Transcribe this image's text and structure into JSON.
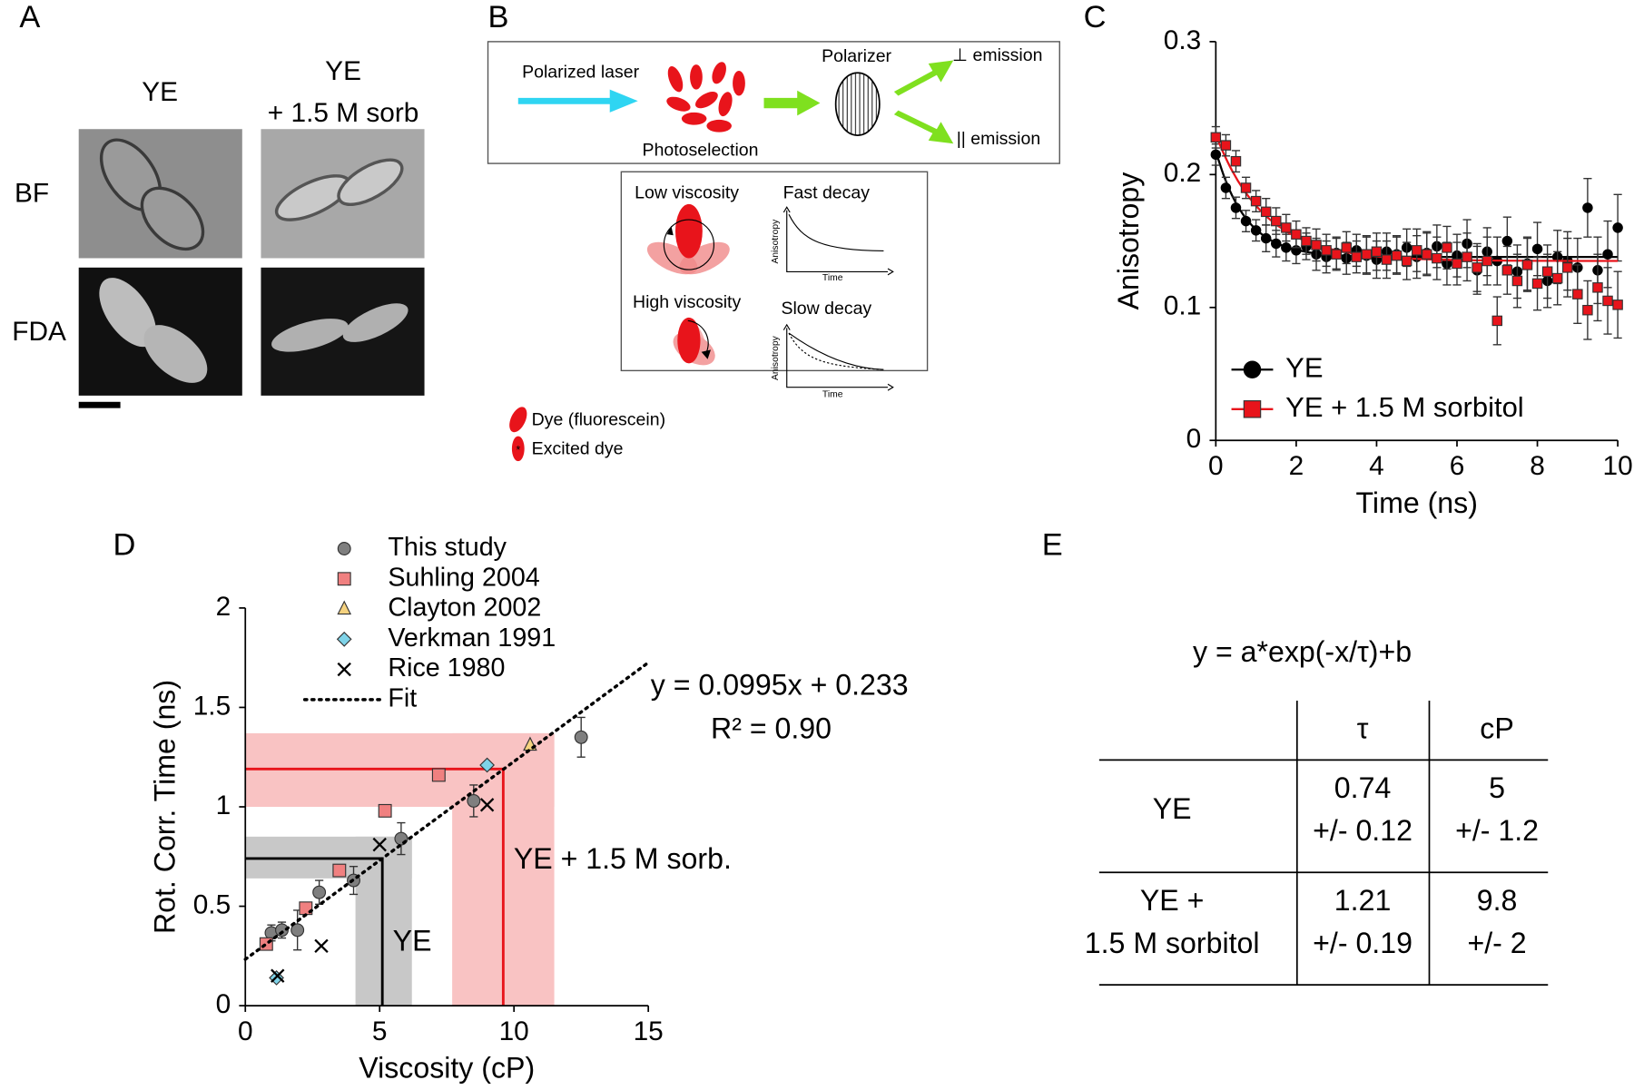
{
  "panel_labels": [
    "A",
    "B",
    "C",
    "D",
    "E"
  ],
  "panel_a": {
    "column_1": [
      "YE"
    ],
    "column_2": [
      "YE",
      "+ 1.5 M sorb"
    ],
    "rows": [
      "BF",
      "FDA"
    ]
  },
  "panel_b": {
    "laser": "Polarized laser",
    "photoselection": "Photoselection",
    "polarizer": "Polarizer",
    "perpendicular": "⊥ emission",
    "parallel": "|| emission",
    "low": "Low viscosity",
    "fast": "Fast decay",
    "high": "High viscosity",
    "slow": "Slow decay",
    "plot_y": "Anisotropy",
    "plot_x": "Time",
    "legend": [
      "Dye (fluorescein)",
      "Excited dye"
    ]
  },
  "chart_data": [
    {
      "type": "scatter",
      "xlabel": "Time (ns)",
      "ylabel": "Anisotropy",
      "xlim": [
        0,
        10
      ],
      "ylim": [
        0,
        0.3
      ],
      "xticks": [
        0,
        2,
        4,
        6,
        8,
        10
      ],
      "yticks": [
        0,
        0.1,
        0.2,
        0.3
      ],
      "legend": "lower left",
      "x": [
        0,
        0.25,
        0.5,
        0.75,
        1,
        1.25,
        1.5,
        1.75,
        2,
        2.25,
        2.5,
        2.75,
        3,
        3.25,
        3.5,
        3.75,
        4,
        4.25,
        4.5,
        4.75,
        5,
        5.25,
        5.5,
        5.75,
        6,
        6.25,
        6.5,
        6.75,
        7,
        7.25,
        7.5,
        7.75,
        8,
        8.25,
        8.5,
        8.75,
        9,
        9.25,
        9.5,
        9.75,
        10
      ],
      "series": [
        {
          "name": "YE",
          "color": "#000000",
          "marker": "circle",
          "values": [
            0.215,
            0.19,
            0.175,
            0.165,
            0.158,
            0.152,
            0.148,
            0.145,
            0.143,
            0.146,
            0.14,
            0.138,
            0.141,
            0.137,
            0.143,
            0.139,
            0.136,
            0.142,
            0.14,
            0.145,
            0.138,
            0.141,
            0.146,
            0.133,
            0.139,
            0.148,
            0.128,
            0.142,
            0.135,
            0.15,
            0.127,
            0.133,
            0.144,
            0.12,
            0.138,
            0.135,
            0.13,
            0.175,
            0.128,
            0.14,
            0.16
          ],
          "errors": [
            0.008,
            0.008,
            0.008,
            0.008,
            0.008,
            0.01,
            0.01,
            0.01,
            0.01,
            0.01,
            0.012,
            0.012,
            0.012,
            0.012,
            0.012,
            0.014,
            0.014,
            0.014,
            0.014,
            0.014,
            0.016,
            0.016,
            0.016,
            0.016,
            0.016,
            0.018,
            0.018,
            0.018,
            0.018,
            0.018,
            0.02,
            0.02,
            0.02,
            0.02,
            0.02,
            0.022,
            0.022,
            0.022,
            0.025,
            0.025,
            0.025
          ],
          "fit": {
            "a": 0.08,
            "tau": 0.74,
            "b": 0.138
          }
        },
        {
          "name": "YE + 1.5 M sorbitol",
          "color": "#e8141b",
          "marker": "square",
          "values": [
            0.228,
            0.222,
            0.21,
            0.19,
            0.18,
            0.172,
            0.165,
            0.16,
            0.155,
            0.15,
            0.147,
            0.143,
            0.14,
            0.145,
            0.138,
            0.14,
            0.142,
            0.136,
            0.139,
            0.135,
            0.143,
            0.14,
            0.137,
            0.145,
            0.133,
            0.138,
            0.13,
            0.135,
            0.09,
            0.128,
            0.12,
            0.132,
            0.118,
            0.127,
            0.122,
            0.13,
            0.11,
            0.098,
            0.115,
            0.105,
            0.102
          ],
          "errors": [
            0.008,
            0.008,
            0.008,
            0.008,
            0.008,
            0.01,
            0.01,
            0.01,
            0.01,
            0.01,
            0.012,
            0.012,
            0.012,
            0.012,
            0.012,
            0.014,
            0.014,
            0.014,
            0.014,
            0.014,
            0.016,
            0.016,
            0.016,
            0.016,
            0.016,
            0.018,
            0.018,
            0.018,
            0.018,
            0.018,
            0.02,
            0.02,
            0.02,
            0.02,
            0.02,
            0.022,
            0.022,
            0.022,
            0.025,
            0.025,
            0.025
          ],
          "fit": {
            "a": 0.095,
            "tau": 1.21,
            "b": 0.135
          }
        }
      ]
    },
    {
      "type": "scatter",
      "xlabel": "Viscosity (cP)",
      "ylabel": "Rot. Corr. Time (ns)",
      "xlim": [
        0,
        15
      ],
      "ylim": [
        0,
        2
      ],
      "xticks": [
        0,
        5,
        10,
        15
      ],
      "yticks": [
        0,
        0.5,
        1,
        1.5,
        2
      ],
      "legend": "above",
      "series": [
        {
          "name": "This study",
          "color": "#7f7f7f",
          "marker": "circle",
          "x": [
            0.97,
            1.36,
            1.94,
            2.75,
            4.03,
            5.8,
            8.5,
            12.5
          ],
          "values": [
            0.366,
            0.38,
            0.38,
            0.57,
            0.63,
            0.84,
            1.03,
            1.35
          ],
          "errors": [
            0.04,
            0.04,
            0.1,
            0.06,
            0.07,
            0.08,
            0.08,
            0.1
          ]
        },
        {
          "name": "Suhling 2004",
          "color": "#f08080",
          "marker": "square",
          "x": [
            0.78,
            2.25,
            3.5,
            5.2,
            7.2
          ],
          "values": [
            0.31,
            0.49,
            0.68,
            0.98,
            1.16
          ]
        },
        {
          "name": "Clayton 2002",
          "color": "#f5d27f",
          "marker": "triangle",
          "x": [
            10.6
          ],
          "values": [
            1.31
          ]
        },
        {
          "name": "Verkman 1991",
          "color": "#7fd3e8",
          "marker": "diamond",
          "x": [
            1.16,
            9.0
          ],
          "values": [
            0.14,
            1.21
          ]
        },
        {
          "name": "Rice 1980",
          "color": "#000000",
          "marker": "cross",
          "x": [
            1.2,
            2.83,
            5.0,
            9.0
          ],
          "values": [
            0.15,
            0.3,
            0.81,
            1.01
          ]
        },
        {
          "name": "Fit",
          "color": "#000000",
          "marker": "line",
          "slope": 0.0995,
          "intercept": 0.233
        }
      ],
      "annotations": [
        "y = 0.0995x + 0.233",
        "R² = 0.90"
      ],
      "regions": [
        {
          "label": "YE",
          "color": "#c8c8c8",
          "line_color": "#000000",
          "label_color": "#000000",
          "xlim": [
            4.1,
            6.2
          ],
          "ylim": [
            0.64,
            0.85
          ],
          "point": [
            5.1,
            0.74
          ]
        },
        {
          "label": "YE + 1.5 M sorb.",
          "color": "#f9c3c3",
          "line_color": "#e8141b",
          "label_color": "#e8141b",
          "xlim": [
            7.7,
            11.5
          ],
          "ylim": [
            1.0,
            1.37
          ],
          "point": [
            9.6,
            1.19
          ]
        }
      ]
    }
  ],
  "panel_e": {
    "formula": "y = a*exp(-x/τ)+b",
    "header": [
      "τ",
      "cP"
    ],
    "rows": [
      {
        "label": [
          "YE"
        ],
        "cells": [
          [
            "0.74",
            "+/- 0.12"
          ],
          [
            "5",
            "+/- 1.2"
          ]
        ]
      },
      {
        "label": [
          "YE +",
          "1.5 M sorbitol"
        ],
        "cells": [
          [
            "1.21",
            "+/- 0.19"
          ],
          [
            "9.8",
            "+/- 2"
          ]
        ]
      }
    ]
  }
}
